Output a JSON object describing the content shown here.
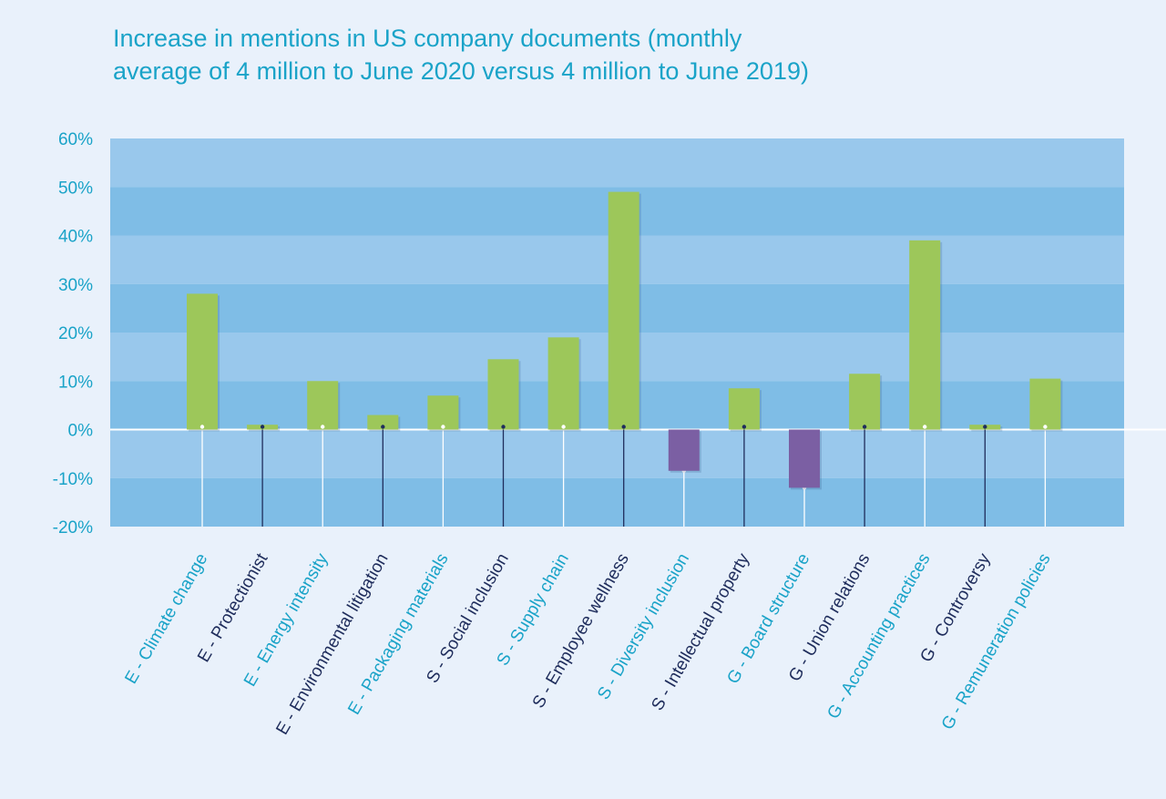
{
  "chart_data": {
    "type": "bar",
    "title_lines": [
      "Increase in mentions in US company documents (monthly",
      "average of 4 million to June 2020 versus 4 million to June 2019)"
    ],
    "categories": [
      "E - Climate change",
      "E - Protectionist",
      "E - Energy intensity",
      "E - Environmental litigation",
      "E - Packaging materials",
      "S - Social inclusion",
      "S - Supply chain",
      "S - Employee wellness",
      "S - Diversity inclusion",
      "S - Intellectual property",
      "G - Board structure",
      "G - Union relations",
      "G - Accounting practices",
      "G - Controversy",
      "G - Remuneration policies"
    ],
    "label_colors": [
      "#1aa3c8",
      "#1f2d5c",
      "#1aa3c8",
      "#1f2d5c",
      "#1aa3c8",
      "#1f2d5c",
      "#1aa3c8",
      "#1f2d5c",
      "#1aa3c8",
      "#1f2d5c",
      "#1aa3c8",
      "#1f2d5c",
      "#1aa3c8",
      "#1f2d5c",
      "#1aa3c8"
    ],
    "values": [
      28,
      1,
      10,
      3,
      7,
      14.5,
      19,
      49,
      -8.5,
      8.5,
      -12,
      11.5,
      39,
      1,
      10.5
    ],
    "unit": "%",
    "ylim": [
      -20,
      60
    ],
    "yticks": [
      60,
      50,
      40,
      30,
      20,
      10,
      0,
      -10,
      -20
    ],
    "ytick_labels": [
      "60%",
      "50%",
      "40%",
      "30%",
      "20%",
      "10%",
      "0%",
      "-10%",
      "-20%"
    ],
    "xlabel": "",
    "ylabel": "",
    "legend": "none",
    "grid": "alternating horizontal bands",
    "colors": {
      "positive_bar": "#9dc75a",
      "negative_bar": "#7b5fa3",
      "band_dark": "#7fbde6",
      "band_light": "#99c8ec",
      "axis_text": "#1aa3c8",
      "leader_dark": "#1f2d5c",
      "leader_light": "#ffffff"
    }
  }
}
